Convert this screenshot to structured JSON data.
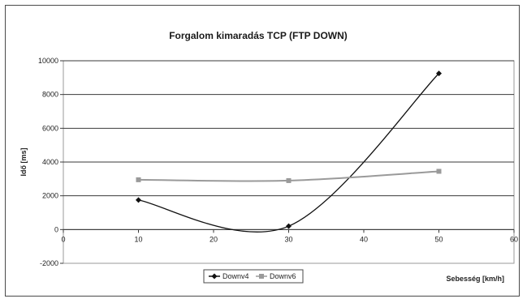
{
  "chart_data": {
    "type": "line",
    "title": "Forgalom kimaradás TCP (FTP DOWN)",
    "xlabel": "Sebesség [km/h]",
    "ylabel": "Idő [ms]",
    "xlim": [
      0,
      60
    ],
    "ylim": [
      -2000,
      10000
    ],
    "xticks": [
      0,
      10,
      20,
      30,
      40,
      50,
      60
    ],
    "yticks": [
      -2000,
      0,
      2000,
      4000,
      6000,
      8000,
      10000
    ],
    "xtick_labels": [
      "0",
      "10",
      "20",
      "30",
      "40",
      "50",
      "60"
    ],
    "ytick_labels": [
      "-2000",
      "0",
      "2000",
      "4000",
      "6000",
      "8000",
      "10000"
    ],
    "grid": true,
    "legend_position": "bottom-left",
    "series": [
      {
        "name": "Downv4",
        "x": [
          10,
          30,
          50
        ],
        "values": [
          1750,
          200,
          9250
        ],
        "color": "#111111",
        "marker": "diamond",
        "smooth": true
      },
      {
        "name": "Downv6",
        "x": [
          10,
          30,
          50
        ],
        "values": [
          2950,
          2900,
          3450
        ],
        "color": "#9a9a9a",
        "marker": "square",
        "smooth": true
      }
    ]
  }
}
